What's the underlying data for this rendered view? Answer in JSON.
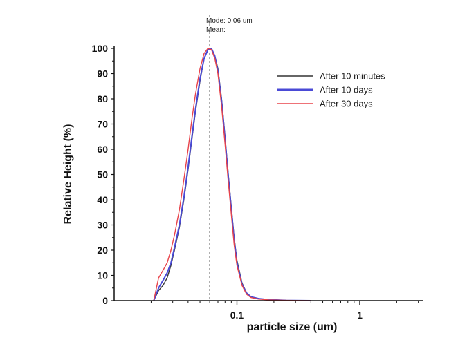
{
  "chart_data": {
    "type": "line",
    "xlabel": "particle size (um)",
    "ylabel": "Relative Height (%)",
    "x_scale": "log",
    "xlim": [
      0.01,
      3.3
    ],
    "ylim": [
      0,
      100
    ],
    "x_tick_labels": [
      {
        "value": 0.1,
        "label": "0.1"
      },
      {
        "value": 1,
        "label": "1"
      }
    ],
    "y_ticks": [
      0,
      10,
      20,
      30,
      40,
      50,
      60,
      70,
      80,
      90,
      100
    ],
    "grid": false,
    "legend_position": "top-right",
    "mode_line_x": 0.06,
    "annotation": {
      "mode": "Mode: 0.06 um",
      "mean": "Mean:"
    },
    "series": [
      {
        "name": "After 10 minutes",
        "color": "#333333",
        "x": [
          0.021,
          0.023,
          0.025,
          0.027,
          0.029,
          0.031,
          0.034,
          0.037,
          0.04,
          0.043,
          0.046,
          0.05,
          0.054,
          0.058,
          0.062,
          0.066,
          0.07,
          0.075,
          0.08,
          0.085,
          0.09,
          0.095,
          0.1,
          0.11,
          0.12,
          0.13,
          0.15,
          0.18,
          0.25,
          0.4
        ],
        "values": [
          0,
          4,
          6,
          9,
          14,
          20,
          29,
          40,
          52,
          64,
          75,
          87,
          96,
          99.5,
          100,
          97,
          92,
          80,
          65,
          50,
          37,
          25,
          16,
          7,
          3,
          1.5,
          0.8,
          0.4,
          0.1,
          0
        ]
      },
      {
        "name": "After 10 days",
        "color": "#4a4ad6",
        "x": [
          0.021,
          0.023,
          0.025,
          0.027,
          0.029,
          0.031,
          0.034,
          0.037,
          0.04,
          0.043,
          0.046,
          0.05,
          0.054,
          0.058,
          0.062,
          0.066,
          0.07,
          0.075,
          0.08,
          0.085,
          0.09,
          0.095,
          0.1,
          0.11,
          0.12,
          0.13,
          0.15,
          0.18,
          0.25,
          0.4
        ],
        "values": [
          0,
          5,
          8,
          11,
          15,
          21,
          30,
          41,
          53,
          65,
          76,
          88,
          96,
          99.5,
          100,
          97,
          91,
          79,
          64,
          49,
          36,
          24,
          15,
          6.5,
          3,
          1.5,
          0.8,
          0.4,
          0.1,
          0
        ]
      },
      {
        "name": "After 30 days",
        "color": "#e8434a",
        "x": [
          0.021,
          0.023,
          0.025,
          0.027,
          0.029,
          0.031,
          0.034,
          0.037,
          0.04,
          0.043,
          0.046,
          0.05,
          0.054,
          0.058,
          0.062,
          0.066,
          0.07,
          0.075,
          0.08,
          0.085,
          0.09,
          0.095,
          0.1,
          0.11,
          0.12,
          0.13,
          0.15,
          0.18,
          0.25,
          0.4
        ],
        "values": [
          0,
          9,
          12,
          15,
          20,
          26,
          36,
          48,
          60,
          72,
          82,
          92,
          98,
          100,
          99.5,
          96,
          90,
          77,
          62,
          47,
          34,
          22,
          14,
          6,
          2.5,
          1.2,
          0.6,
          0.3,
          0.1,
          0
        ]
      }
    ]
  }
}
